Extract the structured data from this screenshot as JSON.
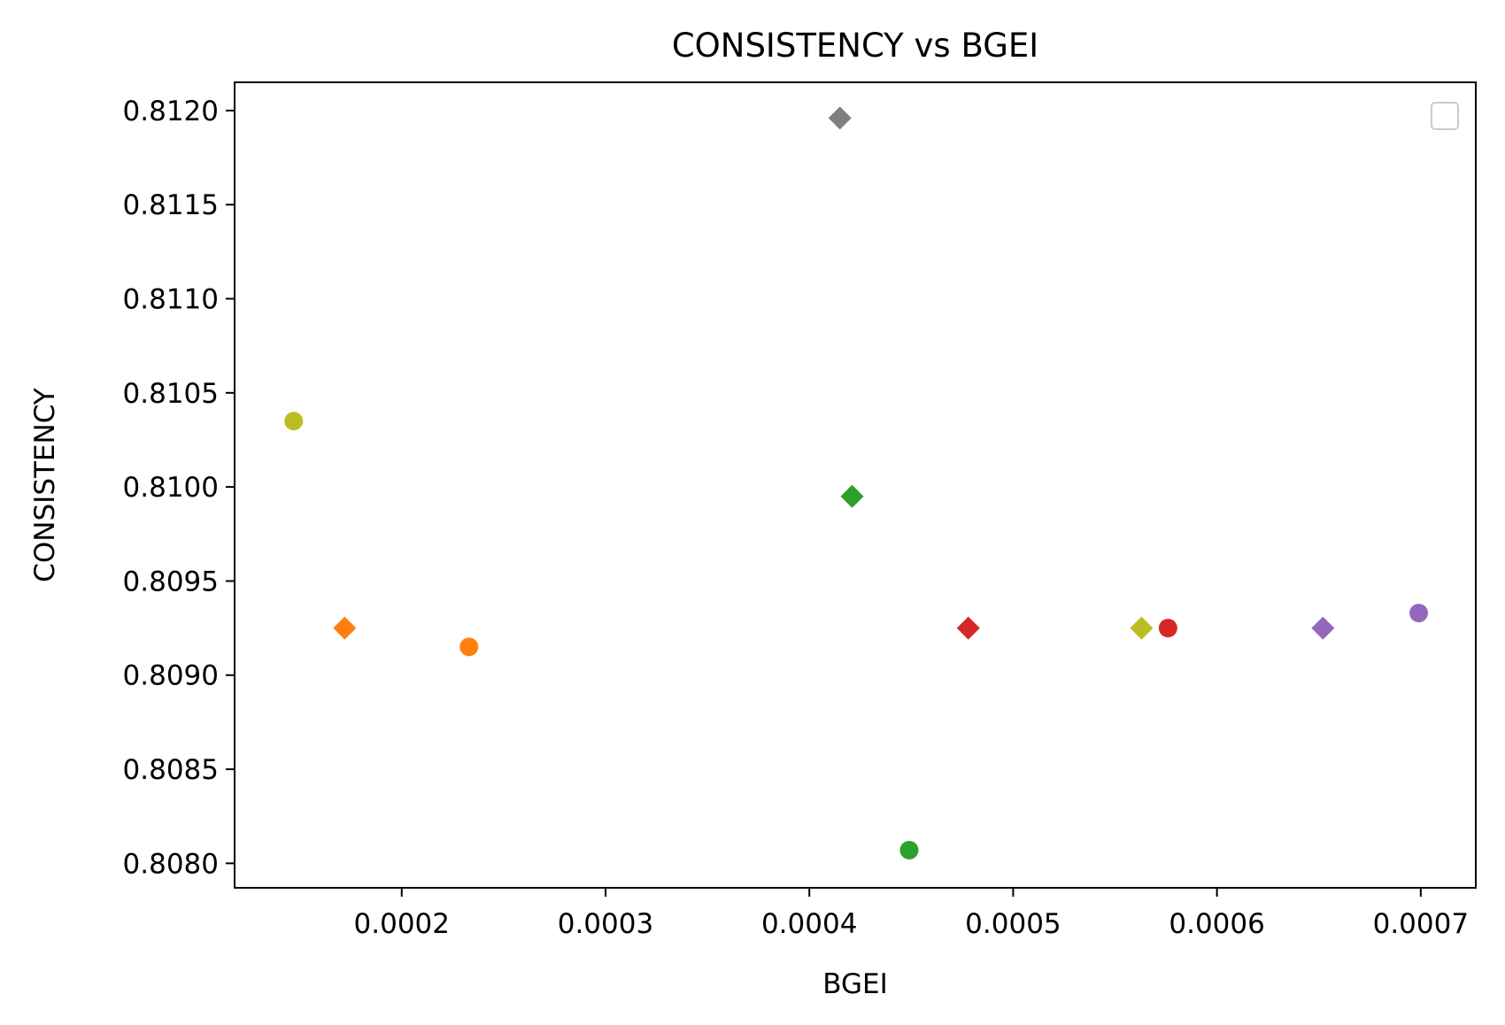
{
  "chart_data": {
    "type": "scatter",
    "title": "CONSISTENCY vs BGEI",
    "xlabel": "BGEI",
    "ylabel": "CONSISTENCY",
    "xlim": [
      0.000118,
      0.000727
    ],
    "ylim": [
      0.80787,
      0.81215
    ],
    "xticks": [
      0.0002,
      0.0003,
      0.0004,
      0.0005,
      0.0006,
      0.0007
    ],
    "xtick_labels": [
      "0.0002",
      "0.0003",
      "0.0004",
      "0.0005",
      "0.0006",
      "0.0007"
    ],
    "yticks": [
      0.808,
      0.8085,
      0.809,
      0.8095,
      0.81,
      0.8105,
      0.811,
      0.8115,
      0.812
    ],
    "ytick_labels": [
      "0.8080",
      "0.8085",
      "0.8090",
      "0.8095",
      "0.8100",
      "0.8105",
      "0.8110",
      "0.8115",
      "0.8120"
    ],
    "grid": false,
    "legend": "top-right, empty",
    "points": [
      {
        "x": 0.000147,
        "y": 0.81035,
        "marker": "circle",
        "color": "#bcbd22"
      },
      {
        "x": 0.000172,
        "y": 0.80925,
        "marker": "diamond",
        "color": "#ff7f0e"
      },
      {
        "x": 0.000233,
        "y": 0.80915,
        "marker": "circle",
        "color": "#ff7f0e"
      },
      {
        "x": 0.000415,
        "y": 0.81196,
        "marker": "diamond",
        "color": "#7f7f7f"
      },
      {
        "x": 0.000421,
        "y": 0.80995,
        "marker": "diamond",
        "color": "#2ca02c"
      },
      {
        "x": 0.000449,
        "y": 0.80807,
        "marker": "circle",
        "color": "#2ca02c"
      },
      {
        "x": 0.000478,
        "y": 0.80925,
        "marker": "diamond",
        "color": "#d62728"
      },
      {
        "x": 0.000563,
        "y": 0.80925,
        "marker": "diamond",
        "color": "#bcbd22"
      },
      {
        "x": 0.000576,
        "y": 0.80925,
        "marker": "circle",
        "color": "#d62728"
      },
      {
        "x": 0.000652,
        "y": 0.80925,
        "marker": "diamond",
        "color": "#9467bd"
      },
      {
        "x": 0.000699,
        "y": 0.80933,
        "marker": "circle",
        "color": "#9467bd"
      }
    ]
  }
}
